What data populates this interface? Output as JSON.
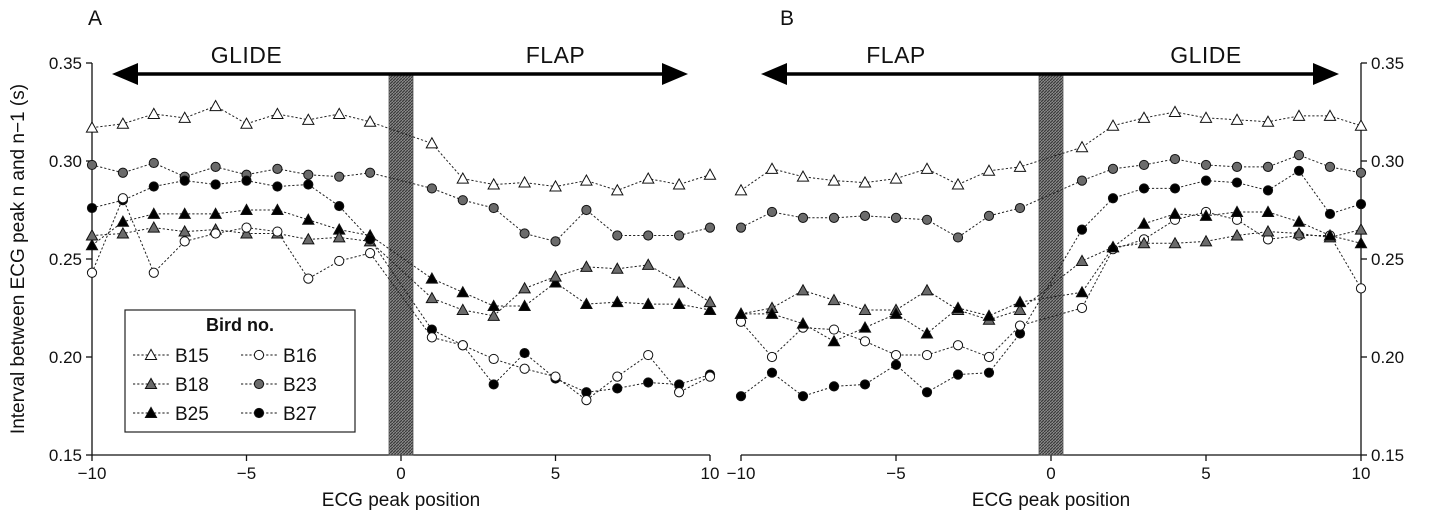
{
  "y_axis_title": "Interval between ECG peak n and n−1 (s)",
  "legend": {
    "title": "Bird no.",
    "entries": [
      {
        "label": "B15",
        "marker": "triangle",
        "fill": "#ffffff"
      },
      {
        "label": "B16",
        "marker": "circle",
        "fill": "#ffffff"
      },
      {
        "label": "B18",
        "marker": "triangle",
        "fill": "#6b6b6b"
      },
      {
        "label": "B23",
        "marker": "circle",
        "fill": "#6b6b6b"
      },
      {
        "label": "B25",
        "marker": "triangle",
        "fill": "#000000"
      },
      {
        "label": "B27",
        "marker": "circle",
        "fill": "#000000"
      }
    ]
  },
  "colors": {
    "line": "#222222",
    "hatched_bar": "#555555",
    "white_fill": "#ffffff",
    "grey_fill": "#6b6b6b",
    "black_fill": "#000000"
  },
  "chart_data": [
    {
      "panel": "A",
      "type": "line",
      "xlabel": "ECG peak position",
      "ylabel": "Interval between ECG peak n and n−1 (s)",
      "xlim": [
        -10,
        10
      ],
      "ylim": [
        0.15,
        0.35
      ],
      "xticks": [
        -10,
        -5,
        0,
        5,
        10
      ],
      "xtick_labels": [
        "−10",
        "−5",
        "0",
        "5",
        "10"
      ],
      "yticks": [
        0.15,
        0.2,
        0.25,
        0.3,
        0.35
      ],
      "ytick_labels": [
        "0.15",
        "0.20",
        "0.25",
        "0.30",
        "0.35"
      ],
      "y_axis_side": "left",
      "grid": false,
      "arrow_labels": {
        "left": "GLIDE",
        "right": "FLAP"
      },
      "x": [
        -10,
        -9,
        -8,
        -7,
        -6,
        -5,
        -4,
        -3,
        -2,
        -1,
        1,
        2,
        3,
        4,
        5,
        6,
        7,
        8,
        9,
        10
      ],
      "series": [
        {
          "name": "B15",
          "values": [
            0.317,
            0.319,
            0.324,
            0.322,
            0.328,
            0.319,
            0.324,
            0.321,
            0.324,
            0.32,
            0.309,
            0.291,
            0.288,
            0.289,
            0.287,
            0.29,
            0.285,
            0.291,
            0.288,
            0.293
          ]
        },
        {
          "name": "B23",
          "values": [
            0.298,
            0.294,
            0.299,
            0.292,
            0.297,
            0.293,
            0.296,
            0.293,
            0.292,
            0.294,
            0.286,
            0.28,
            0.276,
            0.263,
            0.259,
            0.275,
            0.262,
            0.262,
            0.262,
            0.266
          ]
        },
        {
          "name": "B25",
          "values": [
            0.257,
            0.269,
            0.273,
            0.273,
            0.273,
            0.275,
            0.275,
            0.27,
            0.265,
            0.262,
            0.24,
            0.233,
            0.226,
            0.226,
            0.238,
            0.227,
            0.228,
            0.227,
            0.227,
            0.224
          ]
        },
        {
          "name": "B18",
          "values": [
            0.262,
            0.263,
            0.266,
            0.264,
            0.265,
            0.263,
            0.263,
            0.26,
            0.261,
            0.259,
            0.23,
            0.224,
            0.221,
            0.235,
            0.241,
            0.246,
            0.245,
            0.247,
            0.238,
            0.228
          ]
        },
        {
          "name": "B27",
          "values": [
            0.276,
            0.28,
            0.287,
            0.29,
            0.288,
            0.29,
            0.287,
            0.288,
            0.277,
            0.26,
            0.214,
            0.206,
            0.186,
            0.202,
            0.189,
            0.182,
            0.184,
            0.187,
            0.186,
            0.191
          ]
        },
        {
          "name": "B16",
          "values": [
            0.243,
            0.281,
            0.243,
            0.259,
            0.263,
            0.266,
            0.264,
            0.24,
            0.249,
            0.253,
            0.21,
            0.206,
            0.199,
            0.194,
            0.19,
            0.178,
            0.19,
            0.201,
            0.182,
            0.19
          ]
        }
      ]
    },
    {
      "panel": "B",
      "type": "line",
      "xlabel": "ECG peak position",
      "ylabel": "",
      "xlim": [
        -10,
        10
      ],
      "ylim": [
        0.15,
        0.35
      ],
      "xticks": [
        -10,
        -5,
        0,
        5,
        10
      ],
      "xtick_labels": [
        "−10",
        "−5",
        "0",
        "5",
        "10"
      ],
      "yticks": [
        0.15,
        0.2,
        0.25,
        0.3,
        0.35
      ],
      "ytick_labels": [
        "0.15",
        "0.20",
        "0.25",
        "0.30",
        "0.35"
      ],
      "y_axis_side": "right",
      "grid": false,
      "arrow_labels": {
        "left": "FLAP",
        "right": "GLIDE"
      },
      "x": [
        -10,
        -9,
        -8,
        -7,
        -6,
        -5,
        -4,
        -3,
        -2,
        -1,
        1,
        2,
        3,
        4,
        5,
        6,
        7,
        8,
        9,
        10
      ],
      "series": [
        {
          "name": "B15",
          "values": [
            0.285,
            0.296,
            0.292,
            0.29,
            0.289,
            0.291,
            0.296,
            0.288,
            0.295,
            0.297,
            0.307,
            0.318,
            0.322,
            0.325,
            0.322,
            0.321,
            0.32,
            0.323,
            0.323,
            0.318
          ]
        },
        {
          "name": "B23",
          "values": [
            0.266,
            0.274,
            0.271,
            0.271,
            0.272,
            0.271,
            0.27,
            0.261,
            0.272,
            0.276,
            0.29,
            0.296,
            0.298,
            0.301,
            0.298,
            0.297,
            0.297,
            0.303,
            0.297,
            0.294
          ]
        },
        {
          "name": "B27",
          "values": [
            0.18,
            0.192,
            0.18,
            0.185,
            0.186,
            0.196,
            0.182,
            0.191,
            0.192,
            0.212,
            0.265,
            0.281,
            0.286,
            0.286,
            0.29,
            0.289,
            0.285,
            0.295,
            0.273,
            0.278
          ]
        },
        {
          "name": "B16",
          "values": [
            0.218,
            0.2,
            0.215,
            0.214,
            0.208,
            0.201,
            0.201,
            0.206,
            0.2,
            0.216,
            0.225,
            0.255,
            0.26,
            0.27,
            0.274,
            0.27,
            0.26,
            0.262,
            0.262,
            0.235
          ]
        },
        {
          "name": "B18",
          "values": [
            0.222,
            0.225,
            0.234,
            0.229,
            0.224,
            0.224,
            0.234,
            0.224,
            0.219,
            0.224,
            0.249,
            0.256,
            0.258,
            0.258,
            0.259,
            0.262,
            0.264,
            0.263,
            0.261,
            0.265
          ]
        },
        {
          "name": "B25",
          "values": [
            0.222,
            0.222,
            0.217,
            0.208,
            0.215,
            0.222,
            0.212,
            0.225,
            0.221,
            0.228,
            0.233,
            0.256,
            0.268,
            0.273,
            0.272,
            0.274,
            0.274,
            0.269,
            0.262,
            0.258
          ]
        }
      ]
    }
  ]
}
